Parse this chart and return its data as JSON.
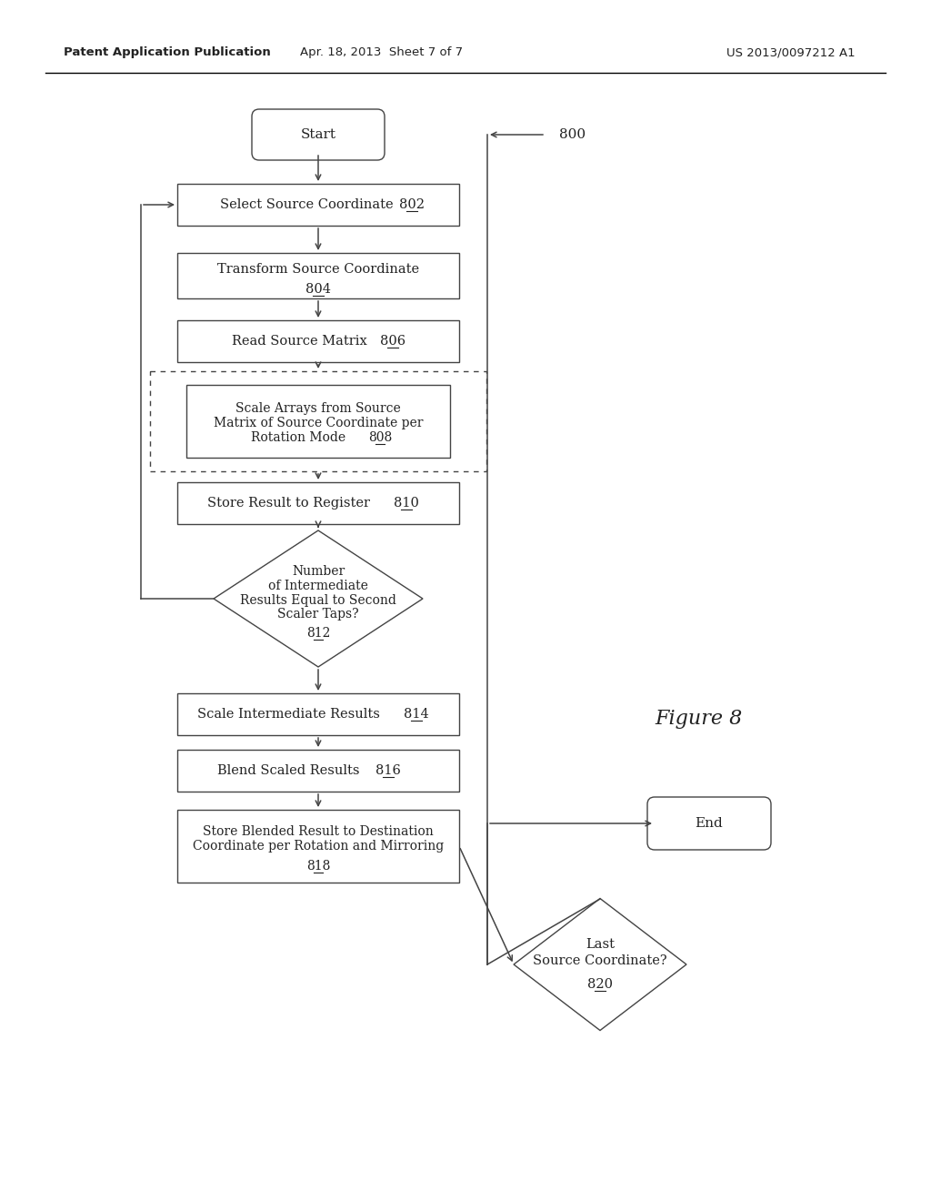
{
  "bg_color": "#ffffff",
  "header_left": "Patent Application Publication",
  "header_mid": "Apr. 18, 2013  Sheet 7 of 7",
  "header_right": "US 2013/0097212 A1",
  "figure_label": "Figure 8",
  "edge_color": "#444444",
  "text_color": "#222222"
}
